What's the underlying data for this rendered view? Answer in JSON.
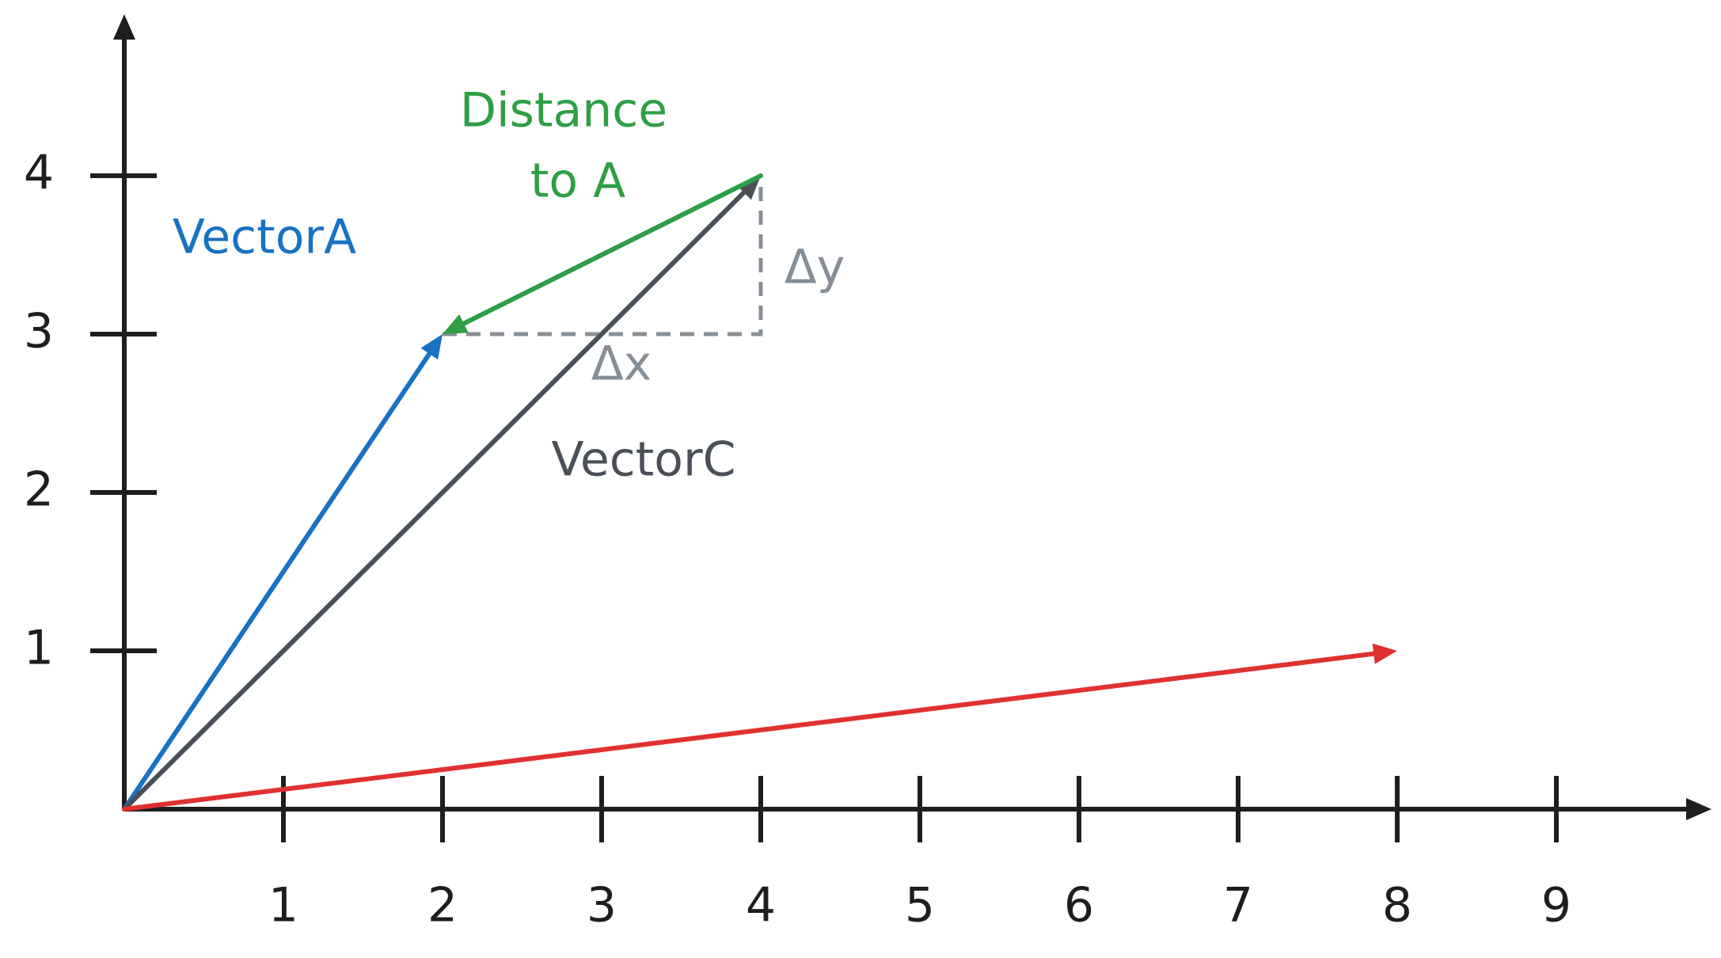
{
  "x_axis": {
    "ticks": [
      1,
      2,
      3,
      4,
      5,
      6,
      7,
      8,
      9
    ]
  },
  "y_axis": {
    "ticks": [
      1,
      2,
      3,
      4
    ]
  },
  "vectors": [
    {
      "label": "VectorA",
      "color": "#1971c2",
      "from": [
        0,
        0
      ],
      "to": [
        2,
        3
      ]
    },
    {
      "label": "VectorC",
      "color": "#495057",
      "from": [
        0,
        0
      ],
      "to": [
        4,
        4
      ]
    },
    {
      "label_lines": [
        "Distance",
        "to A"
      ],
      "color": "#2f9e44",
      "from": [
        4,
        4
      ],
      "to": [
        2,
        3
      ]
    },
    {
      "color": "#e03131",
      "from": [
        0,
        0
      ],
      "to": [
        8,
        1
      ]
    }
  ],
  "delta_labels": {
    "dx": "Δx",
    "dy": "Δy",
    "color": "#868e96"
  }
}
